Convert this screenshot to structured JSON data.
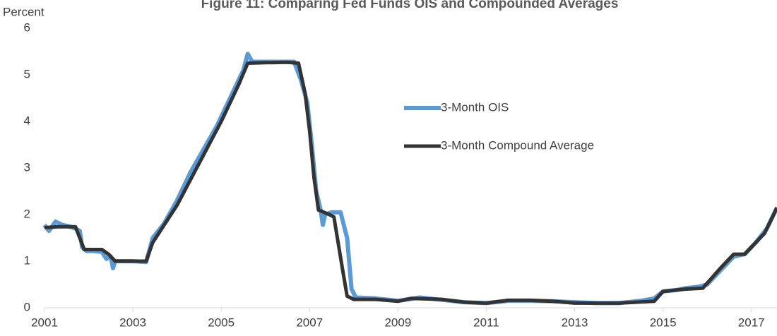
{
  "chart_data": {
    "type": "line",
    "title": "Figure 11: Comparing Fed Funds OIS and Compounded Averages",
    "y_label": "Percent",
    "xlim": [
      2001,
      2017.58
    ],
    "xticks": [
      2001,
      2003,
      2005,
      2007,
      2009,
      2011,
      2013,
      2015,
      2017
    ],
    "ylim": [
      0,
      6
    ],
    "yticks": [
      0,
      1,
      2,
      3,
      4,
      5,
      6
    ],
    "grid": false,
    "legend": "center",
    "series": [
      {
        "name": "3-Month OIS",
        "color": "#5b9bd5",
        "width": 6,
        "x": [
          2001.0,
          2001.1,
          2001.25,
          2001.4,
          2001.55,
          2001.7,
          2001.8,
          2001.85,
          2001.95,
          2002.1,
          2002.3,
          2002.4,
          2002.5,
          2002.55,
          2002.6,
          2002.7,
          2003.0,
          2003.3,
          2003.45,
          2003.7,
          2004.0,
          2004.3,
          2004.6,
          2004.9,
          2005.2,
          2005.5,
          2005.6,
          2005.7,
          2006.0,
          2006.3,
          2006.65,
          2006.8,
          2006.95,
          2007.05,
          2007.15,
          2007.25,
          2007.3,
          2007.35,
          2007.5,
          2007.7,
          2007.85,
          2007.95,
          2008.05,
          2008.5,
          2009.0,
          2009.5,
          2010.0,
          2010.5,
          2011.0,
          2011.5,
          2012.0,
          2012.5,
          2013.0,
          2013.5,
          2014.0,
          2014.5,
          2014.8,
          2015.0,
          2015.3,
          2015.5,
          2015.8,
          2016.0,
          2016.3,
          2016.6,
          2016.85,
          2017.1,
          2017.35,
          2017.58
        ],
        "values": [
          1.78,
          1.65,
          1.85,
          1.78,
          1.75,
          1.7,
          1.65,
          1.3,
          1.22,
          1.22,
          1.2,
          1.05,
          1.1,
          0.85,
          1.0,
          1.0,
          1.0,
          0.98,
          1.5,
          1.8,
          2.3,
          2.9,
          3.4,
          3.9,
          4.5,
          5.1,
          5.45,
          5.28,
          5.28,
          5.28,
          5.28,
          4.9,
          4.4,
          3.5,
          2.5,
          2.1,
          1.78,
          2.0,
          2.05,
          2.05,
          1.5,
          0.4,
          0.22,
          0.2,
          0.15,
          0.22,
          0.17,
          0.12,
          0.1,
          0.15,
          0.15,
          0.14,
          0.12,
          0.1,
          0.1,
          0.15,
          0.2,
          0.35,
          0.38,
          0.42,
          0.45,
          0.5,
          0.8,
          1.1,
          1.15,
          1.4,
          1.7,
          2.15
        ]
      },
      {
        "name": "3-Month Compound Average",
        "color": "#333333",
        "width": 5,
        "x": [
          2001.0,
          2001.3,
          2001.7,
          2001.9,
          2002.3,
          2002.45,
          2002.6,
          2003.3,
          2003.45,
          2004.0,
          2004.5,
          2005.0,
          2005.4,
          2005.6,
          2006.0,
          2006.5,
          2006.75,
          2006.9,
          2007.0,
          2007.1,
          2007.2,
          2007.45,
          2007.55,
          2007.75,
          2007.85,
          2008.0,
          2008.5,
          2009.0,
          2009.3,
          2010.0,
          2010.5,
          2011.0,
          2011.5,
          2012.0,
          2012.5,
          2013.0,
          2014.0,
          2014.8,
          2015.0,
          2015.5,
          2015.9,
          2016.3,
          2016.6,
          2016.85,
          2017.3,
          2017.58
        ],
        "values": [
          1.72,
          1.74,
          1.74,
          1.25,
          1.25,
          1.15,
          1.0,
          1.0,
          1.4,
          2.2,
          3.1,
          4.0,
          4.8,
          5.25,
          5.26,
          5.27,
          5.25,
          4.6,
          3.8,
          2.8,
          2.1,
          2.0,
          1.95,
          0.8,
          0.25,
          0.18,
          0.18,
          0.14,
          0.2,
          0.18,
          0.12,
          0.1,
          0.16,
          0.16,
          0.14,
          0.1,
          0.1,
          0.14,
          0.35,
          0.4,
          0.42,
          0.85,
          1.15,
          1.15,
          1.6,
          2.15
        ]
      }
    ]
  }
}
